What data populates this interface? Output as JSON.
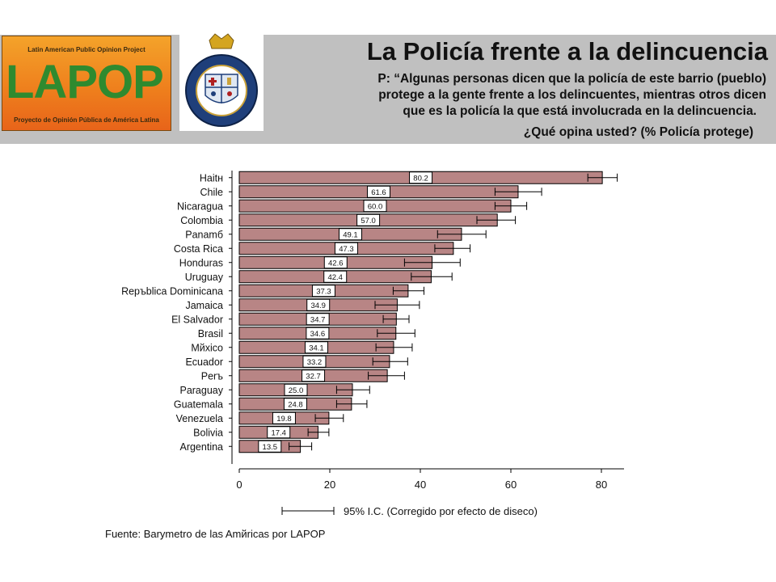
{
  "header": {
    "logo_top": "Latin American Public Opinion Project",
    "logo_word": "LAPOP",
    "logo_bottom": "Proyecto de Opinión Pública de América Latina",
    "title": "La Policía frente a la delincuencia",
    "question_lines": [
      "P: “Algunas personas dicen que la policía de este barrio (pueblo)",
      "protege a la gente frente a los delincuentes, mientras otros dicen",
      "que es la policía la que está involucrada en la delincuencia.",
      "¿Qué opina usted? (% Policía protege)"
    ]
  },
  "source": "Fuente: Barymetro de las Amйricas por LAPOP",
  "colors": {
    "header_band": "#c0c0c0",
    "bar_fill": "#b88585",
    "bar_stroke": "#000000",
    "logo_orange": "#ee7d1c",
    "logo_green": "#2f8a2f"
  },
  "chart_data": {
    "type": "bar",
    "orientation": "horizontal",
    "categories": [
      "Haitн",
      "Chile",
      "Nicaragua",
      "Colombia",
      "Panamб",
      "Costa Rica",
      "Honduras",
      "Uruguay",
      "Repъblica Dominicana",
      "Jamaica",
      "El Salvador",
      "Brasil",
      "Mйxico",
      "Ecuador",
      "Perъ",
      "Paraguay",
      "Guatemala",
      "Venezuela",
      "Bolivia",
      "Argentina"
    ],
    "values": [
      80.2,
      61.6,
      60.0,
      57.0,
      49.1,
      47.3,
      42.6,
      42.4,
      37.3,
      34.9,
      34.7,
      34.6,
      34.1,
      33.2,
      32.7,
      25.0,
      24.8,
      19.8,
      17.4,
      13.5
    ],
    "value_labels": [
      "80.2",
      "61.6",
      "60.0",
      "57.0",
      "49.1",
      "47.3",
      "42.6",
      "42.4",
      "37.3",
      "34.9",
      "34.7",
      "34.6",
      "34.1",
      "33.2",
      "32.7",
      "25.0",
      "24.8",
      "19.8",
      "17.4",
      "13.5"
    ],
    "ci_low": [
      77.0,
      56.5,
      56.5,
      52.5,
      43.8,
      43.2,
      36.5,
      38.0,
      34.0,
      30.0,
      31.8,
      30.5,
      30.2,
      29.5,
      28.5,
      21.5,
      21.5,
      16.8,
      15.2,
      11.0
    ],
    "ci_high": [
      83.5,
      66.8,
      63.5,
      61.0,
      54.5,
      51.0,
      48.8,
      47.0,
      40.8,
      39.8,
      37.5,
      38.8,
      38.2,
      37.2,
      36.5,
      28.8,
      28.2,
      23.0,
      19.8,
      16.0
    ],
    "xlim": [
      0,
      85
    ],
    "xticks": [
      0,
      20,
      40,
      60,
      80
    ],
    "xtick_labels": [
      "0",
      "20",
      "40",
      "60",
      "80"
    ],
    "legend": "95% I.C. (Corregido por efecto de diseсo)",
    "grid": false
  }
}
